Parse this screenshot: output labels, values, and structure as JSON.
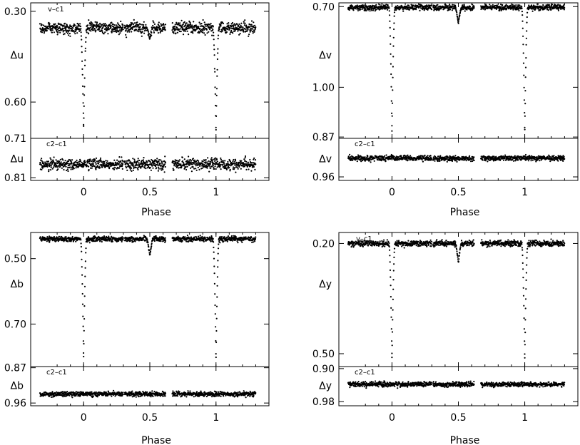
{
  "chart_data": [
    {
      "type": "scatter",
      "band": "u",
      "xlabel": "Phase",
      "xlim": [
        -0.4,
        1.4
      ],
      "xticks": [
        "0",
        "0.5",
        "1"
      ],
      "top": {
        "label": "v–c1",
        "ylabel": "Δu",
        "yticks": [
          "0.30",
          "0.60"
        ],
        "ylim": [
          0.272,
          0.72
        ],
        "baseline": 0.355,
        "primary_min": 0.69,
        "secondary_min": 0.39,
        "scatter": 0.01,
        "points": []
      },
      "bottom": {
        "label": "c2–c1",
        "ylabel": "Δu",
        "yticks": [
          "0.71",
          "0.81"
        ],
        "ylim": [
          0.71,
          0.817
        ],
        "level": 0.776,
        "scatter": 0.007,
        "points": []
      }
    },
    {
      "type": "scatter",
      "band": "v",
      "xlabel": "Phase",
      "xlim": [
        -0.4,
        1.4
      ],
      "xticks": [
        "0",
        "0.5",
        "1"
      ],
      "top": {
        "label": "v–c1",
        "ylabel": "Δv",
        "yticks": [
          "0.70",
          "1.00"
        ],
        "ylim": [
          0.686,
          1.19
        ],
        "baseline": 0.703,
        "primary_min": 1.16,
        "secondary_min": 0.76,
        "scatter": 0.005,
        "points": []
      },
      "bottom": {
        "label": "c2–c1",
        "ylabel": "Δv",
        "yticks": [
          "0.87",
          "0.96"
        ],
        "ylim": [
          0.873,
          0.968
        ],
        "level": 0.918,
        "scatter": 0.003,
        "points": []
      }
    },
    {
      "type": "scatter",
      "band": "b",
      "xlabel": "Phase",
      "xlim": [
        -0.4,
        1.4
      ],
      "xticks": [
        "0",
        "0.5",
        "1"
      ],
      "top": {
        "label": "v–c1",
        "ylabel": "Δb",
        "yticks": [
          "0.50",
          "0.70"
        ],
        "ylim": [
          0.42,
          0.83
        ],
        "baseline": 0.44,
        "primary_min": 0.8,
        "secondary_min": 0.49,
        "scatter": 0.004,
        "points": []
      },
      "bottom": {
        "label": "c2–c1",
        "ylabel": "Δb",
        "yticks": [
          "0.87",
          "0.96"
        ],
        "ylim": [
          0.867,
          0.967
        ],
        "level": 0.937,
        "scatter": 0.003,
        "points": []
      }
    },
    {
      "type": "scatter",
      "band": "y",
      "xlabel": "Phase",
      "xlim": [
        -0.4,
        1.4
      ],
      "xticks": [
        "0",
        "0.5",
        "1"
      ],
      "top": {
        "label": "v–c1",
        "ylabel": "Δy",
        "yticks": [
          "0.20",
          "0.50"
        ],
        "ylim": [
          0.17,
          0.535
        ],
        "baseline": 0.2,
        "primary_min": 0.51,
        "secondary_min": 0.25,
        "scatter": 0.004,
        "points": []
      },
      "bottom": {
        "label": "c2–c1",
        "ylabel": "Δy",
        "yticks": [
          "0.90",
          "0.98"
        ],
        "ylim": [
          0.895,
          0.99
        ],
        "level": 0.938,
        "scatter": 0.003,
        "points": []
      }
    }
  ]
}
